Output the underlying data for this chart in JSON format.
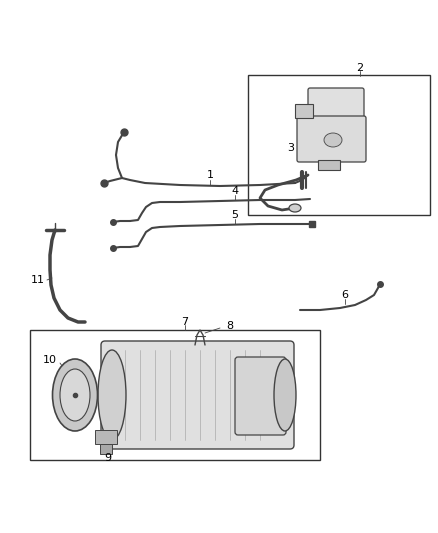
{
  "bg_color": "#ffffff",
  "line_color": "#444444",
  "box_color": "#333333",
  "label_color": "#000000",
  "fig_width": 4.38,
  "fig_height": 5.33,
  "dpi": 100,
  "label_fontsize": 8
}
